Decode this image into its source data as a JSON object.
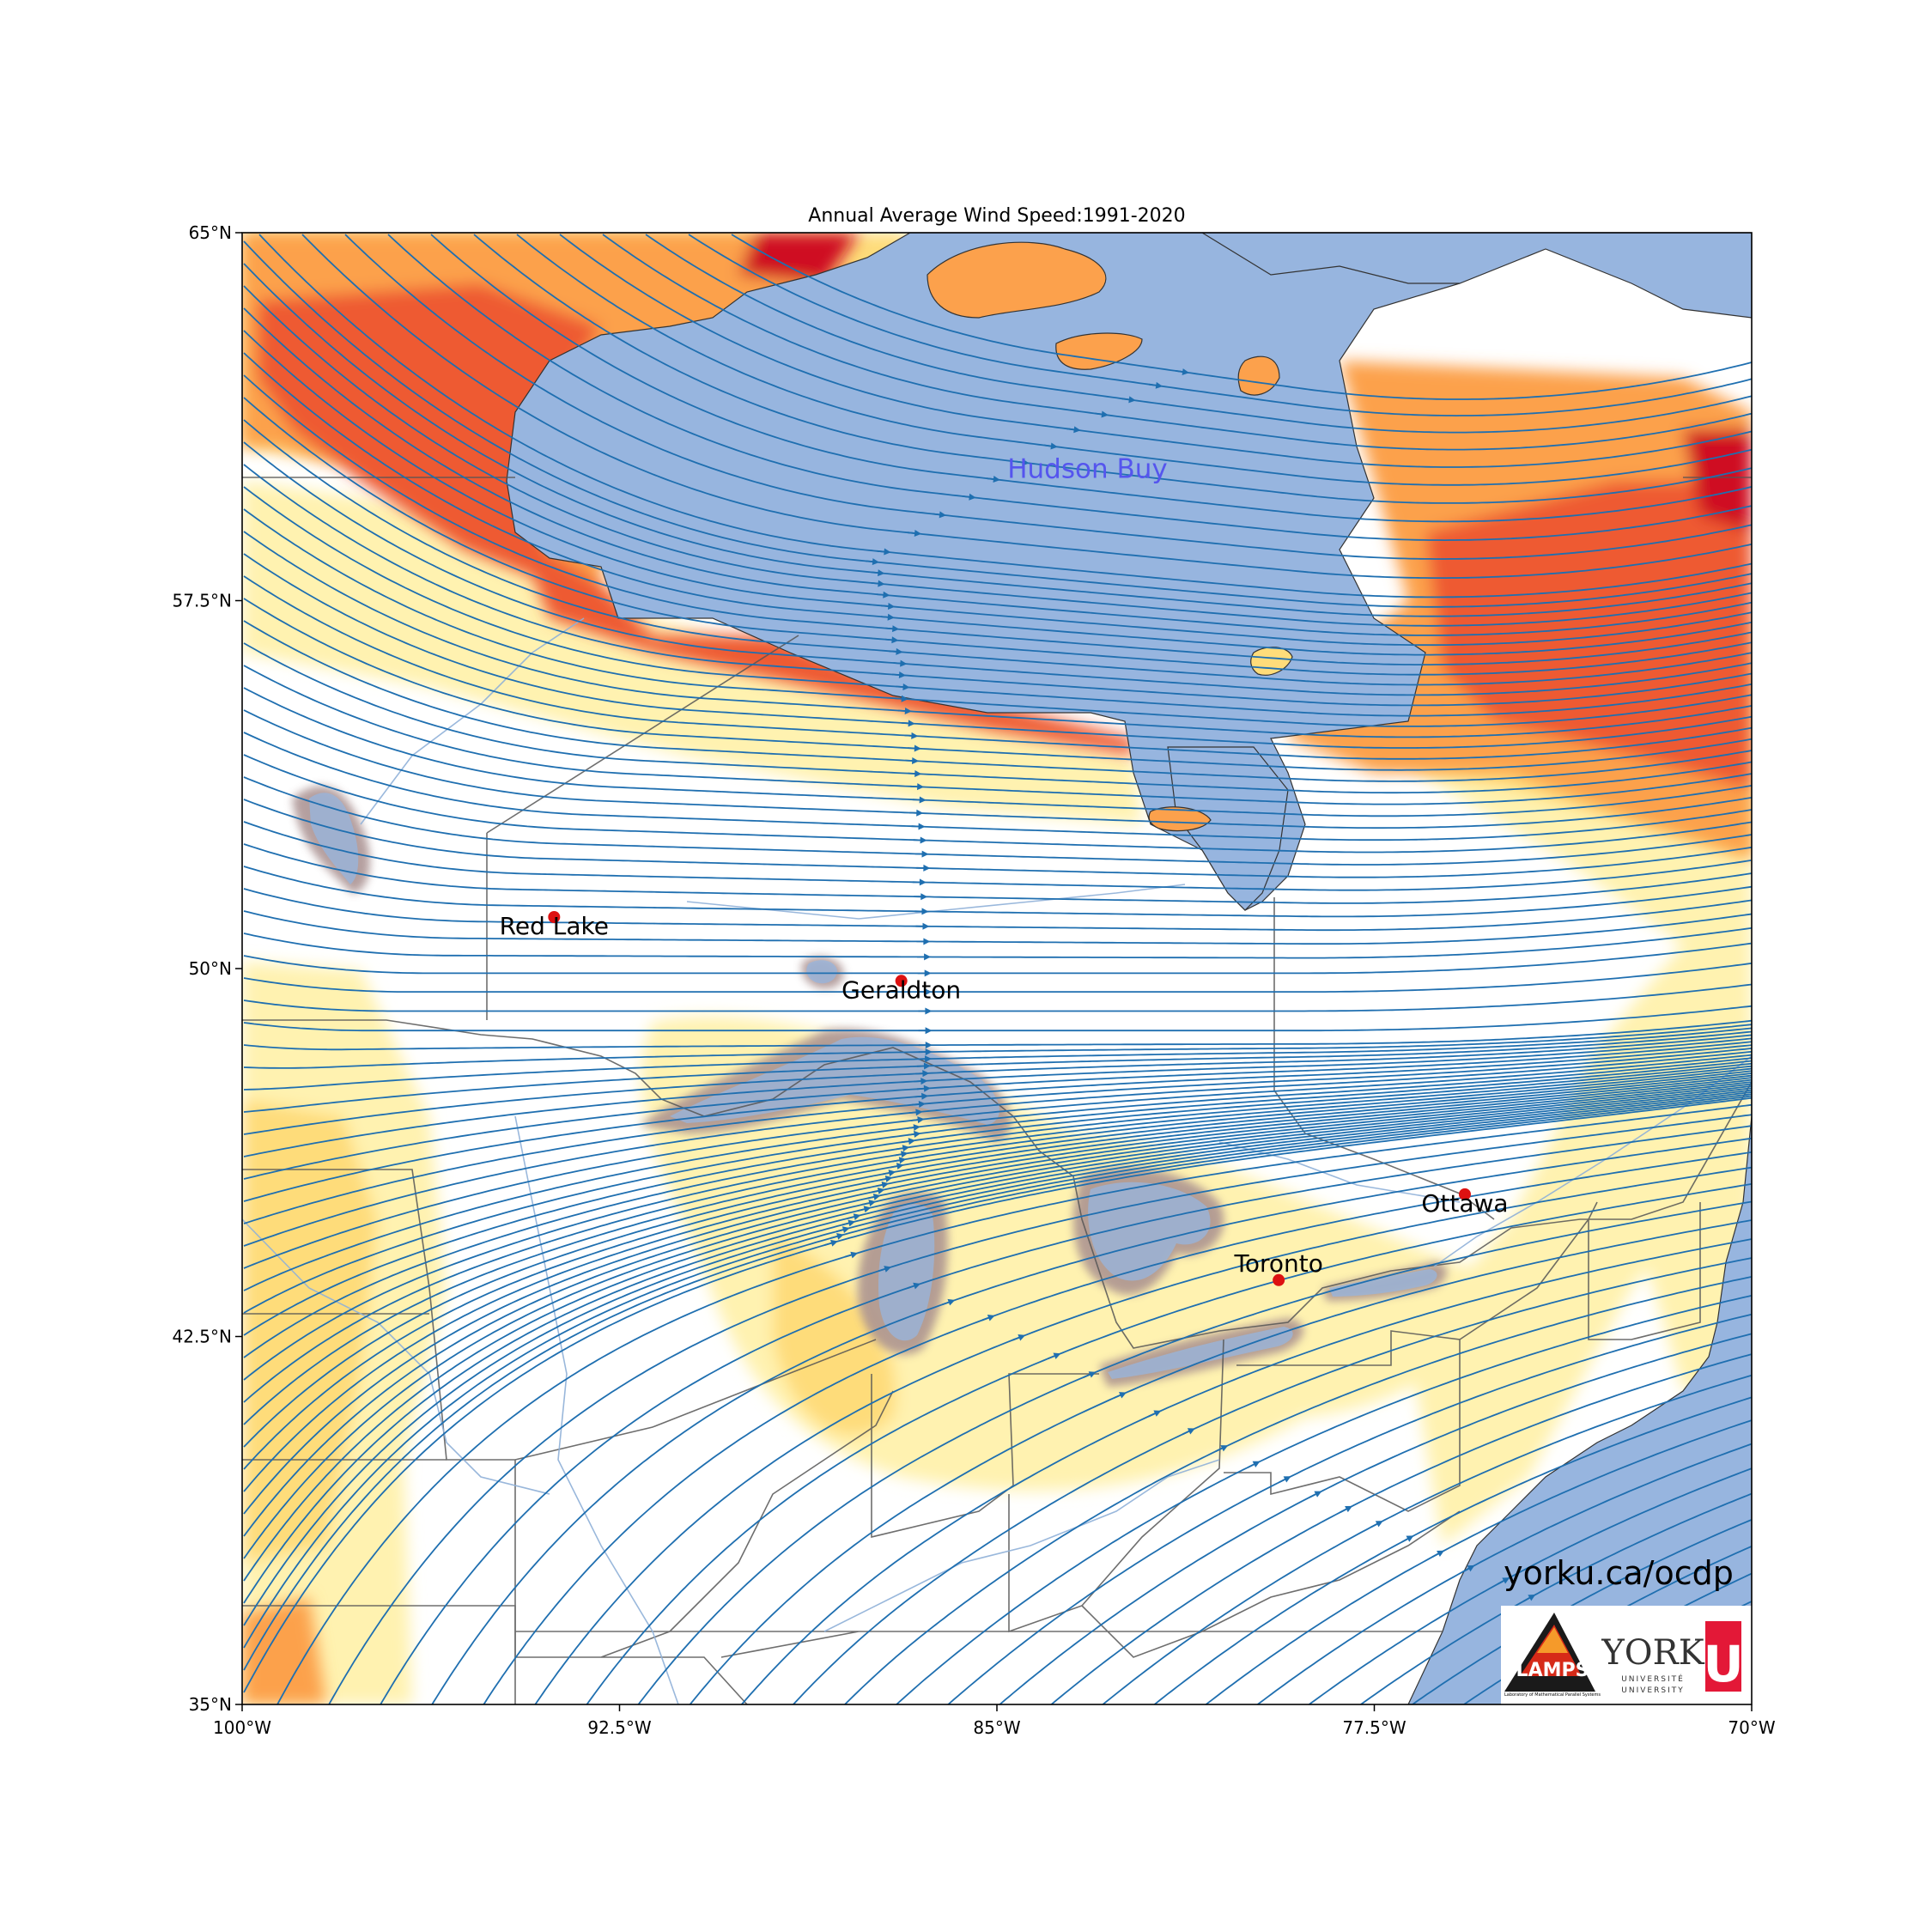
{
  "title": "Annual Average Wind Speed:1991-2020",
  "extent": {
    "lon": [
      -100,
      -70
    ],
    "lat": [
      35,
      65
    ]
  },
  "x_ticks": [
    {
      "lon": -100,
      "label": "100°W"
    },
    {
      "lon": -92.5,
      "label": "92.5°W"
    },
    {
      "lon": -85,
      "label": "85°W"
    },
    {
      "lon": -77.5,
      "label": "77.5°W"
    },
    {
      "lon": -70,
      "label": "70°W"
    }
  ],
  "y_ticks": [
    {
      "lat": 65,
      "label": "65°N"
    },
    {
      "lat": 57.5,
      "label": "57.5°N"
    },
    {
      "lat": 50,
      "label": "50°N"
    },
    {
      "lat": 42.5,
      "label": "42.5°N"
    },
    {
      "lat": 35,
      "label": "35°N"
    }
  ],
  "water_label": {
    "text": "Hudson Buy",
    "lon": -83.2,
    "lat": 60.0
  },
  "cities": [
    {
      "name": "Red Lake",
      "lon": -93.8,
      "lat": 51.05
    },
    {
      "name": "Geraldton",
      "lon": -86.9,
      "lat": 49.75
    },
    {
      "name": "Ottawa",
      "lon": -75.7,
      "lat": 45.4
    },
    {
      "name": "Toronto",
      "lon": -79.4,
      "lat": 43.65
    }
  ],
  "website": "yorku.ca/ocdp",
  "logos": {
    "left": {
      "text": "LAMPS",
      "subtext": "Laboratory of Mathematical Parallel Systems"
    },
    "right": {
      "text": "YORK",
      "subtext_1": "UNIVERSITÉ",
      "subtext_2": "UNIVERSITY",
      "mark": "U"
    }
  },
  "colors": {
    "water": "#97b5df",
    "streamline": "#1f6fb0",
    "city_marker": "#dd1111",
    "hudson_label": "#5555ee",
    "wind_low": "#fff2b0",
    "wind_mid_low": "#fedc7a",
    "wind_mid": "#fca14c",
    "wind_high": "#ee5a30",
    "wind_max": "#cf1024",
    "lake_wind": "#a88f8f"
  }
}
